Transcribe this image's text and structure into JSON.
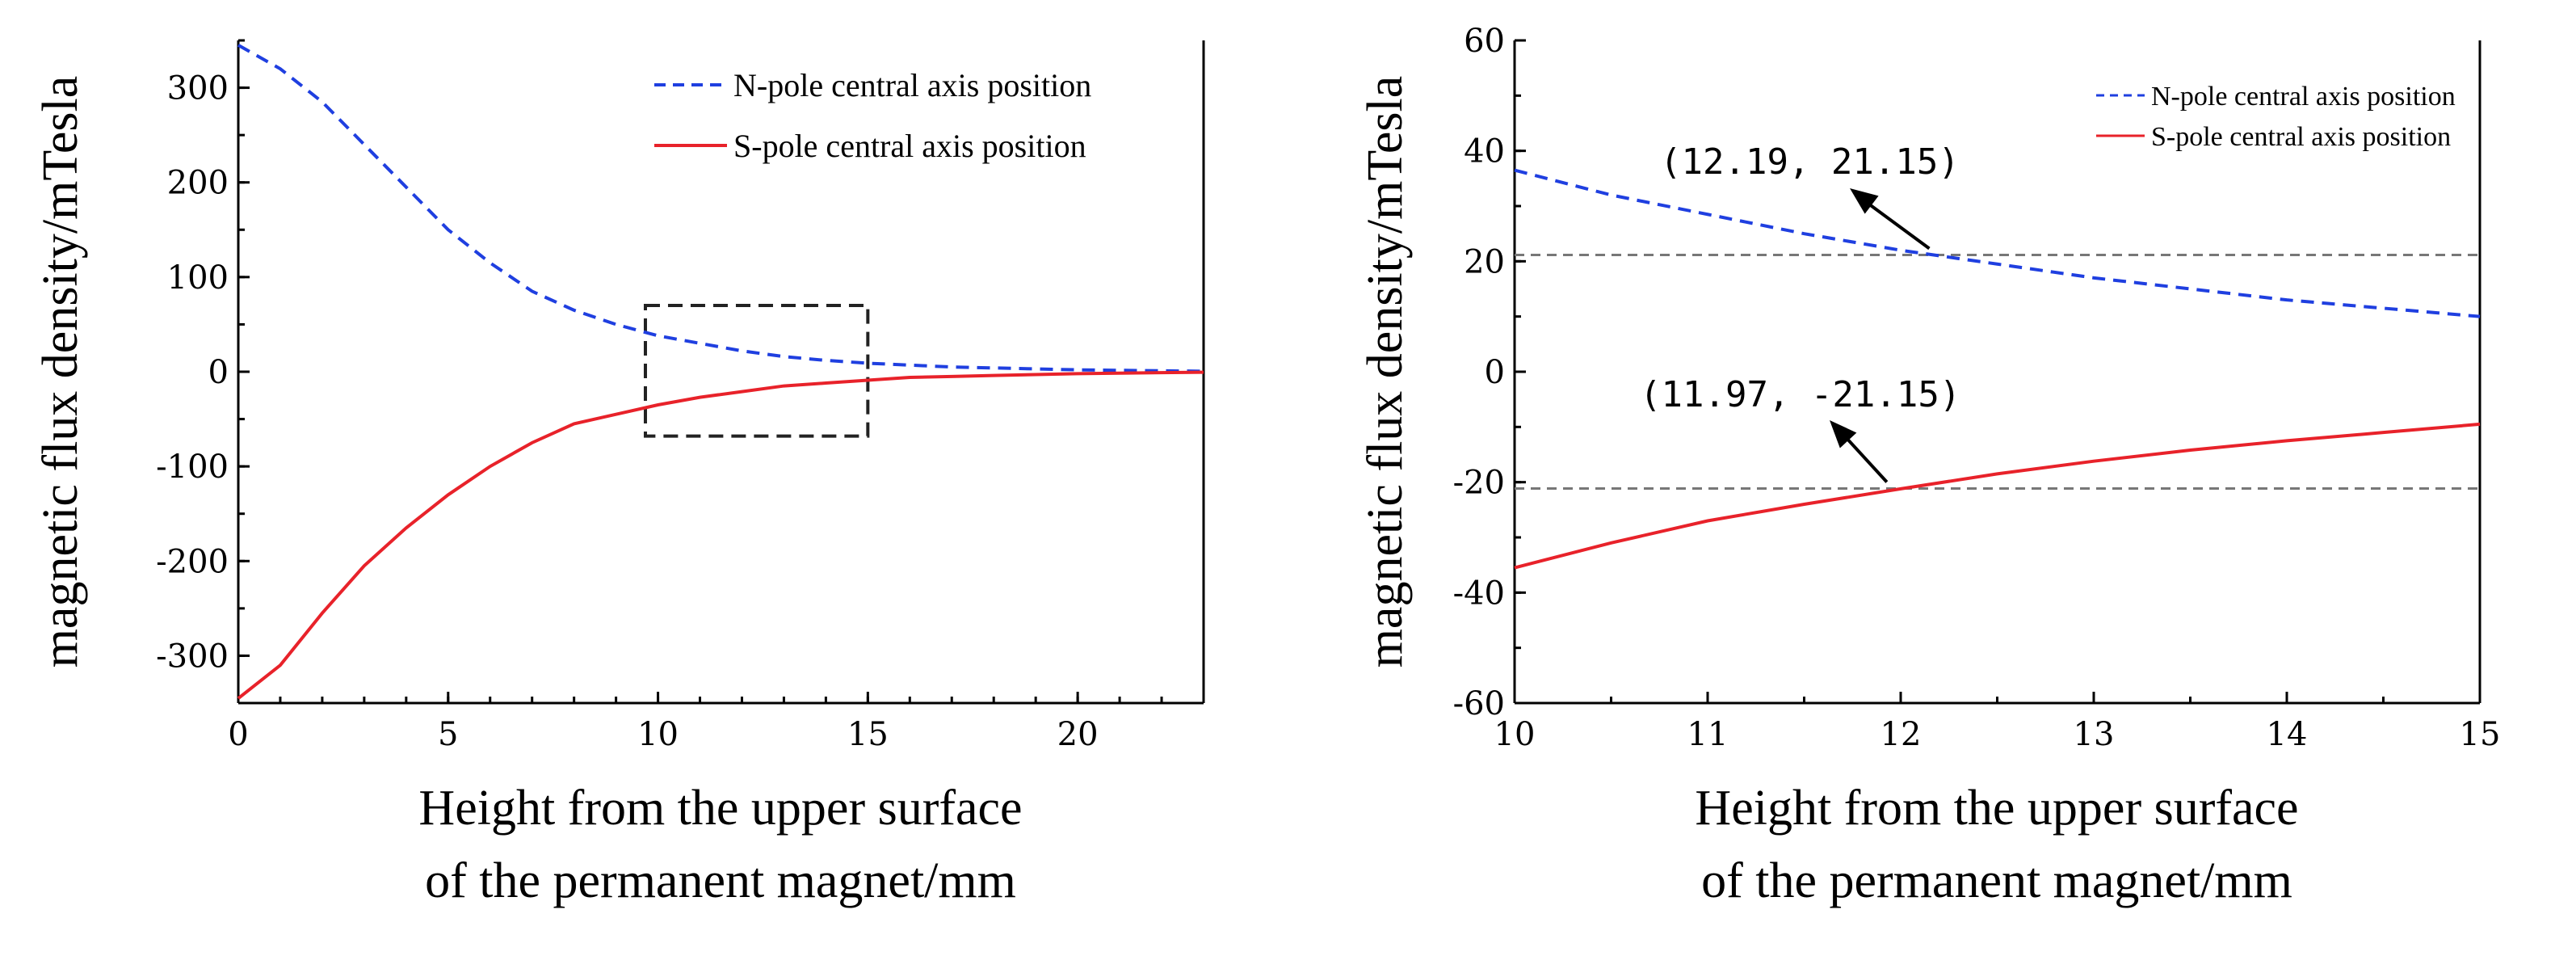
{
  "colors": {
    "n_pole": "#1f3fe0",
    "s_pole": "#e8222a",
    "reference": "#777777",
    "box": "#222222",
    "arrow": "#000000"
  },
  "chart_data": [
    {
      "type": "line",
      "xlabel_lines": [
        "Height from the upper surface",
        "of the permanent magnet/mm"
      ],
      "ylabel": "magnetic flux density/mTesla",
      "xlim": [
        0,
        23
      ],
      "ylim": [
        -350,
        350
      ],
      "xticks": [
        "0",
        "5",
        "10",
        "15",
        "20"
      ],
      "yticks": [
        "-300",
        "-200",
        "-100",
        "0",
        "100",
        "200",
        "300"
      ],
      "legend_placement": "top-right",
      "series": [
        {
          "name": "N-pole central axis position",
          "style": "dashed",
          "color": "#1f3fe0",
          "x": [
            0,
            1,
            2,
            3,
            4,
            5,
            6,
            7,
            8,
            9,
            10,
            11,
            12,
            13,
            14,
            15,
            16,
            17,
            18,
            19,
            20,
            21,
            22,
            23
          ],
          "y": [
            345,
            320,
            285,
            240,
            195,
            150,
            115,
            85,
            65,
            50,
            38,
            30,
            22,
            16,
            12,
            9,
            7,
            5,
            4,
            3,
            2,
            1.5,
            1,
            0.5
          ]
        },
        {
          "name": "S-pole central axis position",
          "style": "solid",
          "color": "#e8222a",
          "x": [
            0,
            1,
            2,
            3,
            4,
            5,
            6,
            7,
            8,
            9,
            10,
            11,
            12,
            13,
            14,
            15,
            16,
            17,
            18,
            19,
            20,
            21,
            22,
            23
          ],
          "y": [
            -345,
            -310,
            -255,
            -205,
            -165,
            -130,
            -100,
            -75,
            -55,
            -45,
            -35,
            -27,
            -21,
            -15,
            -12,
            -9,
            -6,
            -5,
            -4,
            -3,
            -2,
            -1.5,
            -1,
            -0.5
          ]
        }
      ],
      "zoom_box": {
        "x": [
          9.7,
          15
        ],
        "y": [
          -68,
          70
        ]
      }
    },
    {
      "type": "line",
      "xlabel_lines": [
        "Height from the upper surface",
        "of the permanent magnet/mm"
      ],
      "ylabel": "magnetic flux density/mTesla",
      "xlim": [
        10,
        15
      ],
      "ylim": [
        -60,
        60
      ],
      "xticks": [
        "10",
        "11",
        "12",
        "13",
        "14",
        "15"
      ],
      "yticks": [
        "-60",
        "-40",
        "-20",
        "0",
        "20",
        "40",
        "60"
      ],
      "legend_placement": "top-right",
      "series": [
        {
          "name": "N-pole central axis position",
          "style": "dashed",
          "color": "#1f3fe0",
          "x": [
            10,
            10.5,
            11,
            11.5,
            12,
            12.5,
            13,
            13.5,
            14,
            14.5,
            15
          ],
          "y": [
            36.5,
            32,
            28.5,
            25,
            22,
            19.5,
            17,
            15,
            13,
            11.5,
            10
          ]
        },
        {
          "name": "S-pole central axis position",
          "style": "solid",
          "color": "#e8222a",
          "x": [
            10,
            10.5,
            11,
            11.5,
            12,
            12.5,
            13,
            13.5,
            14,
            14.5,
            15
          ],
          "y": [
            -35.5,
            -31,
            -27,
            -24,
            -21.2,
            -18.5,
            -16.2,
            -14.2,
            -12.5,
            -11,
            -9.5
          ]
        }
      ],
      "reference_lines": [
        21.15,
        -21.15
      ],
      "annotations": [
        {
          "text": "(12.19, 21.15)",
          "point": [
            12.19,
            21.15
          ]
        },
        {
          "text": "(11.97, -21.15)",
          "point": [
            11.97,
            -21.15
          ]
        }
      ]
    }
  ]
}
